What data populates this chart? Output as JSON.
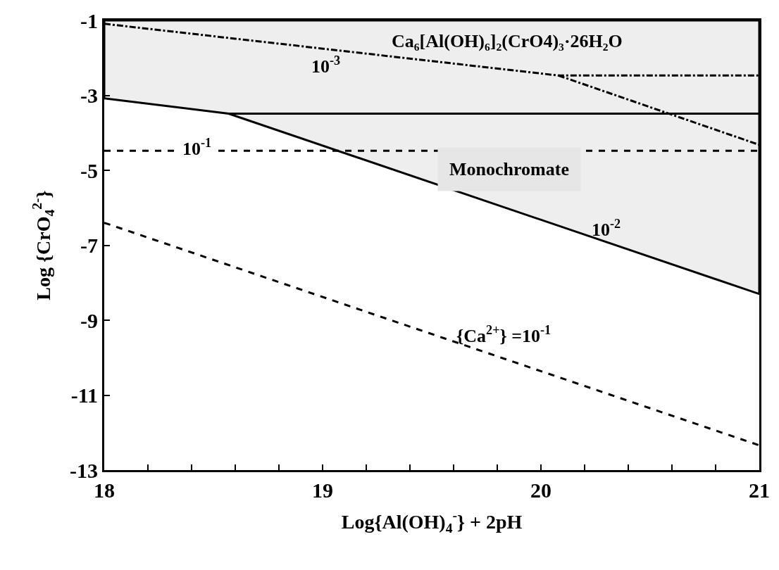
{
  "chart_data": {
    "type": "line",
    "xlabel": "Log{Al(OH)$_{4}$$^{-}$} + 2pH",
    "ylabel": "Log {CrO$_{4}$$^{2-}$}",
    "xlim": [
      18,
      21
    ],
    "xticks": [
      18,
      {
        "value": 18.2,
        "label": null
      },
      {
        "value": 18.4,
        "label": null
      },
      {
        "value": 18.6,
        "label": null
      },
      {
        "value": 18.8,
        "label": null
      },
      19,
      {
        "value": 19.2,
        "label": null
      },
      {
        "value": 19.4,
        "label": null
      },
      {
        "value": 19.6,
        "label": null
      },
      {
        "value": 19.8,
        "label": null
      },
      20,
      {
        "value": 20.2,
        "label": null
      },
      {
        "value": 20.4,
        "label": null
      },
      {
        "value": 20.6,
        "label": null
      },
      {
        "value": 20.8,
        "label": null
      },
      21
    ],
    "ylim": [
      -13,
      -1
    ],
    "yticks": [
      -13,
      -11,
      -9,
      -7,
      -5,
      -3,
      -1
    ],
    "grid": false,
    "marker": "none",
    "series": [
      {
        "type": "area",
        "color": "#eeeeee",
        "x": [
          18,
          18.57,
          21
        ],
        "values": [
          -3.08,
          -3.49,
          -8.3
        ],
        "line_style": "solid"
      },
      {
        "color": "#000000",
        "x": [
          18.57,
          21
        ],
        "values": [
          -3.49,
          -3.49
        ],
        "line_style": "solid"
      },
      {
        "color": "#000000",
        "x": [
          18,
          20.08,
          21
        ],
        "values": [
          -1.09,
          -2.47,
          -2.47
        ],
        "line_style": "dashdot"
      },
      {
        "color": "#000000",
        "x": [
          20.08,
          21
        ],
        "values": [
          -2.47,
          -4.32
        ],
        "line_style": "dashdot"
      },
      {
        "color": "#000000",
        "x": [
          18,
          21
        ],
        "values": [
          -4.48,
          -4.48
        ],
        "line_style": "dashed"
      },
      {
        "color": "#000000",
        "x": [
          18,
          21
        ],
        "values": [
          -6.4,
          -12.34
        ],
        "line_style": "dashed"
      }
    ],
    "annotations": [
      "Ca₆[Al(OH)₆]₂(CrO4)₃·26H₂O",
      "10$^{-3}$",
      "10$^{-1}$",
      "Monochromate",
      "10$^{-2}$",
      "{Ca$^{2+}$} =10$^{-1}$"
    ]
  }
}
